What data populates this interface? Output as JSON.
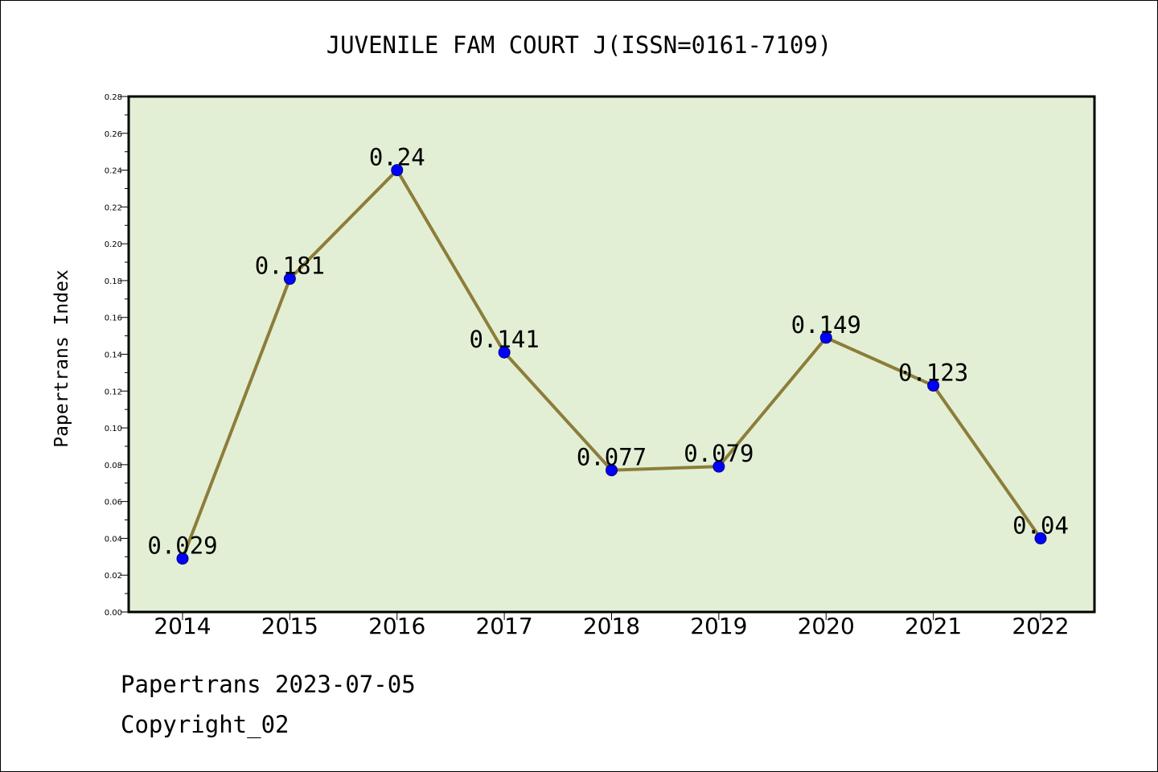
{
  "footer": {
    "source": "Papertrans 2023-07-05",
    "copyright": "Copyright_02"
  },
  "chart_data": {
    "type": "line",
    "title": "JUVENILE FAM COURT J(ISSN=0161-7109)",
    "xlabel": "",
    "ylabel": "Papertrans Index",
    "categories": [
      "2014",
      "2015",
      "2016",
      "2017",
      "2018",
      "2019",
      "2020",
      "2021",
      "2022"
    ],
    "series": [
      {
        "values": [
          0.029,
          0.181,
          0.24,
          0.141,
          0.077,
          0.079,
          0.149,
          0.123,
          0.04
        ],
        "data_labels": [
          "0.029",
          "0.181",
          "0.24",
          "0.141",
          "0.077",
          "0.079",
          "0.149",
          "0.123",
          "0.04"
        ]
      }
    ],
    "ylim": [
      0,
      0.28
    ],
    "yticks": [
      "0.00",
      "0.02",
      "0.04",
      "0.06",
      "0.08",
      "0.10",
      "0.12",
      "0.14",
      "0.16",
      "0.18",
      "0.20",
      "0.22",
      "0.24",
      "0.26",
      "0.28"
    ],
    "grid": false,
    "colors": {
      "plot_background": "#e2efd5",
      "line": "#8c7d3a",
      "marker": "#0000ff"
    }
  }
}
